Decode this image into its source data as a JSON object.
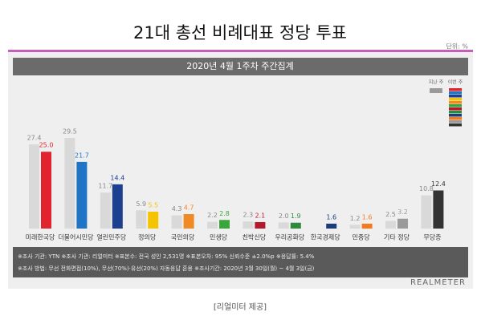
{
  "chart_data": {
    "type": "bar",
    "title": "21대 총선 비례대표 정당 투표",
    "subtitle": "2020년 4월 1주차 주간집계",
    "unit": "단위: %",
    "categories": [
      "미래한국당",
      "더불어시민당",
      "열린민주당",
      "정의당",
      "국민의당",
      "민생당",
      "친박신당",
      "우리공화당",
      "한국경제당",
      "민중당",
      "기타 정당",
      "무당층"
    ],
    "series": [
      {
        "name": "지난 주",
        "color": "#d9d9d9",
        "label_color": "#888888",
        "values": [
          27.4,
          29.5,
          11.7,
          5.9,
          4.3,
          2.2,
          2.3,
          2.0,
          null,
          1.2,
          2.5,
          10.8
        ],
        "value_labels": [
          "27.4",
          "29.5",
          "11.7",
          "5.9",
          "4.3",
          "2.2",
          "2.3",
          "2.0",
          null,
          "1.2",
          "2.5",
          "10.8"
        ]
      },
      {
        "name": "이번 주",
        "colors": [
          "#e0232f",
          "#1f74c6",
          "#1c3f8f",
          "#f5c400",
          "#f08a24",
          "#3aa53a",
          "#b5172b",
          "#2e8b3e",
          "#1b3d7a",
          "#f47a20",
          "#9a9a9a",
          "#333333"
        ],
        "values": [
          25.0,
          21.7,
          14.4,
          5.5,
          4.7,
          2.8,
          2.1,
          1.9,
          1.6,
          1.6,
          3.2,
          12.4
        ],
        "value_labels": [
          "25.0",
          "21.7",
          "14.4",
          "5.5",
          "4.7",
          "2.8",
          "2.1",
          "1.9",
          "1.6",
          "1.6",
          "3.2",
          "12.4"
        ]
      }
    ],
    "notes": [
      "※조사 기관: YTN ※조사 기관: 리얼미터 ※표본수: 전국 성인 2,531명 ※표본오차: 95% 신뢰수준 ±2.0%p ※응답률: 5.4%",
      "※조사 방법: 무선 전화면접(10%), 무선(70%)·유선(20%) 자동응답 혼용 ※조사기간: 2020년 3월 30일(월) ~ 4월 3일(금)"
    ],
    "brand": "REALMETER",
    "credit": "[리얼미터 제공]"
  }
}
